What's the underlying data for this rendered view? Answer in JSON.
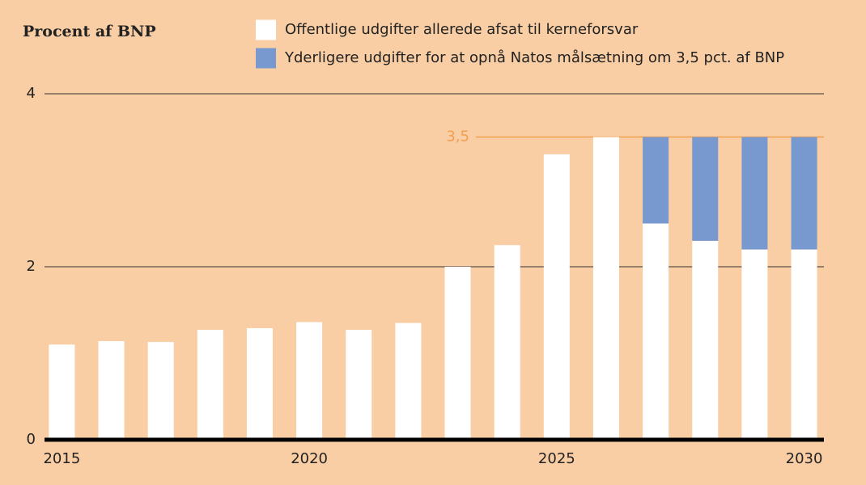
{
  "chart_data": {
    "type": "stacked-bar",
    "ylabel": "Procent af BNP",
    "x": [
      2015,
      2016,
      2017,
      2018,
      2019,
      2020,
      2021,
      2022,
      2023,
      2024,
      2025,
      2026,
      2027,
      2028,
      2029,
      2030
    ],
    "series": [
      {
        "name": "Offentlige udgifter allerede afsat til kerneforsvar",
        "color": "#ffffff",
        "values": [
          1.1,
          1.14,
          1.13,
          1.27,
          1.29,
          1.36,
          1.27,
          1.35,
          2.0,
          2.25,
          3.3,
          3.5,
          2.5,
          2.3,
          2.2,
          2.2
        ]
      },
      {
        "name": "Yderligere udgifter for at opnå Natos målsætning om 3,5 pct. af BNP",
        "color": "#7799cf",
        "values": [
          null,
          null,
          null,
          null,
          null,
          null,
          null,
          null,
          null,
          null,
          null,
          null,
          1.0,
          1.2,
          1.3,
          1.3
        ]
      }
    ],
    "xlim": [
      2014.65,
      2030.4
    ],
    "xticks": [
      2015,
      2020,
      2025,
      2030
    ],
    "ylim": [
      0,
      4
    ],
    "yticks": [
      0,
      2,
      4
    ],
    "grid": true,
    "reference_line": {
      "value": 3.5,
      "label": "3,5",
      "color": "#f0a050"
    }
  }
}
